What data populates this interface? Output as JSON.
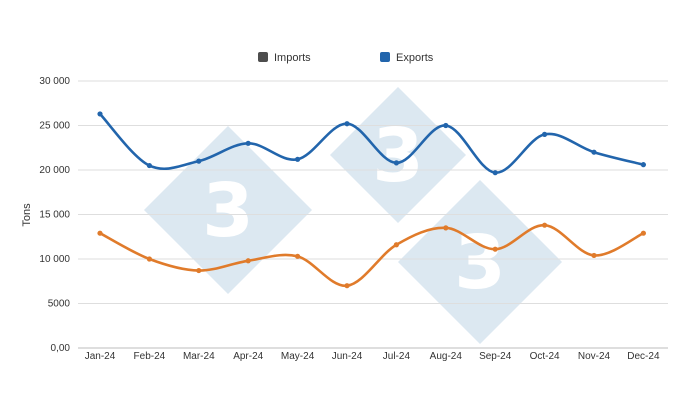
{
  "watermark": {
    "text": "3",
    "color": "#dce8f1"
  },
  "chart_data": {
    "type": "line",
    "title": "",
    "xlabel": "",
    "ylabel": "Tons",
    "ylim": [
      0,
      30000
    ],
    "yticks": [
      0,
      5000,
      10000,
      15000,
      20000,
      25000,
      30000
    ],
    "ytick_labels": [
      "0,00",
      "5000",
      "10 000",
      "15 000",
      "20 000",
      "25 000",
      "30 000"
    ],
    "categories": [
      "Jan-24",
      "Feb-24",
      "Mar-24",
      "Apr-24",
      "May-24",
      "Jun-24",
      "Jul-24",
      "Aug-24",
      "Sep-24",
      "Oct-24",
      "Nov-24",
      "Dec-24"
    ],
    "grid": true,
    "legend": "top-center",
    "legend_items": [
      {
        "name": "Imports",
        "swatch_color": "#4d4d4d"
      },
      {
        "name": "Exports",
        "swatch_color": "#2265ac"
      }
    ],
    "series": [
      {
        "color": "#2265ac",
        "values": [
          26300,
          20500,
          21000,
          23000,
          21200,
          25200,
          20800,
          25000,
          19700,
          24000,
          22000,
          20600
        ]
      },
      {
        "color": "#e07b2b",
        "values": [
          12900,
          10000,
          8700,
          9800,
          10300,
          7000,
          11600,
          13500,
          11100,
          13800,
          10400,
          12900
        ]
      }
    ]
  }
}
